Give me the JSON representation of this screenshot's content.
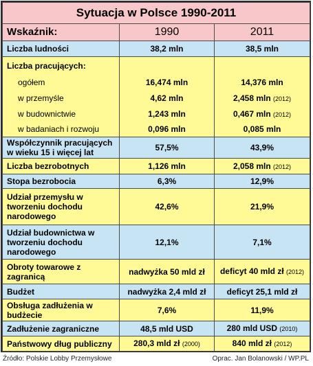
{
  "title": "Sytuacja w Polsce 1990-2011",
  "header": {
    "label": "Wskaźnik:",
    "col1": "1990",
    "col2": "2011"
  },
  "rows": [
    {
      "label": "Liczba ludności",
      "v1": "38,2 mln",
      "v2": "38,5 mln",
      "y1": "",
      "y2": ""
    },
    {
      "label": "Liczba pracujących:",
      "v1": "",
      "v2": "",
      "y1": "",
      "y2": ""
    },
    {
      "label": "ogółem",
      "v1": "16,474 mln",
      "v2": "14,376 mln",
      "y1": "",
      "y2": ""
    },
    {
      "label": "w przemyśle",
      "v1": "4,62 mln",
      "v2": "2,458 mln",
      "y1": "",
      "y2": "(2012)"
    },
    {
      "label": "w budownictwie",
      "v1": "1,243 mln",
      "v2": "0,467 mln",
      "y1": "",
      "y2": "(2012)"
    },
    {
      "label": "w badaniach i rozwoju",
      "v1": "0,096 mln",
      "v2": "0,085 mln",
      "y1": "",
      "y2": ""
    },
    {
      "label": "Współczynnik pracujących w wieku 15 i więcej lat",
      "v1": "57,5%",
      "v2": "43,9%",
      "y1": "",
      "y2": ""
    },
    {
      "label": "Liczba bezrobotnych",
      "v1": "1,126 mln",
      "v2": "2,058 mln",
      "y1": "",
      "y2": "(2012)"
    },
    {
      "label": "Stopa bezrobocia",
      "v1": "6,3%",
      "v2": "12,9%",
      "y1": "",
      "y2": ""
    },
    {
      "label": "Udział przemysłu w tworzeniu dochodu narodowego",
      "v1": "42,6%",
      "v2": "21,9%",
      "y1": "",
      "y2": ""
    },
    {
      "label": "Udział budownictwa w tworzeniu dochodu narodowego",
      "v1": "12,1%",
      "v2": "7,1%",
      "y1": "",
      "y2": ""
    },
    {
      "label": "Obroty towarowe z zagranicą",
      "v1": "nadwyżka 50 mld zł",
      "v2": "deficyt 40 mld zł",
      "y1": "",
      "y2": "(2012)"
    },
    {
      "label": "Budżet",
      "v1": "nadwyżka 2,4 mld zł",
      "v2": "deficyt 25,1 mld zł",
      "y1": "",
      "y2": ""
    },
    {
      "label": "Obsługa zadłużenia w budżecie",
      "v1": "7,6%",
      "v2": "11,9%",
      "y1": "",
      "y2": ""
    },
    {
      "label": "Zadłużenie zagraniczne",
      "v1": "48,5 mld USD",
      "v2": "280 mld USD",
      "y1": "",
      "y2": "(2010)"
    },
    {
      "label": "Państwowy dług publiczny",
      "v1": "280,3 mld zł",
      "v2": "840 mld zł",
      "y1": "(2000)",
      "y2": "(2012)"
    }
  ],
  "footer": {
    "source": "Źródło: Polskie Lobby Przemysłowe",
    "author": "Oprac. Jan Bolanowski / WP.PL"
  },
  "colors": {
    "title_bg": "#f7c7ca",
    "blue_row": "#c7e4f4",
    "yellow_row": "#fffa96"
  }
}
